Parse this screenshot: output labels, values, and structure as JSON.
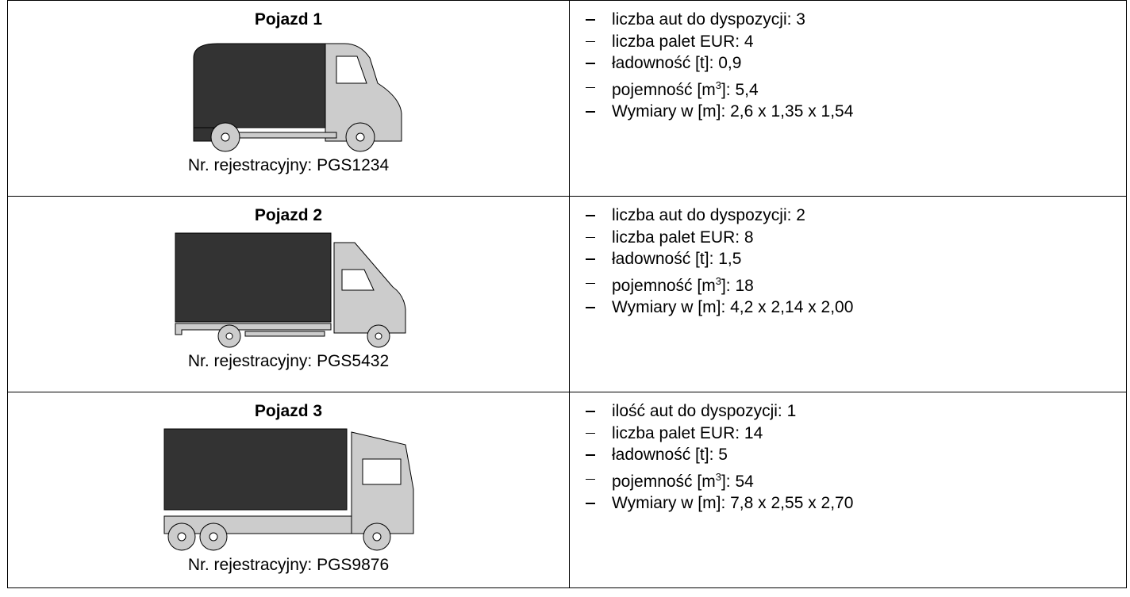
{
  "rows": [
    {
      "title": "Pojazd 1",
      "registration": "Nr. rejestracyjny: PGS1234",
      "specs": [
        "liczba aut do dyspozycji: 3",
        "liczba palet EUR: 4",
        "ładowność [t]: 0,9",
        {
          "before": "pojemność [m",
          "sup": "3",
          "after": "]: 5,4"
        },
        "Wymiary w [m]: 2,6 x 1,35 x 1,54"
      ]
    },
    {
      "title": "Pojazd 2",
      "registration": "Nr. rejestracyjny: PGS5432",
      "specs": [
        "liczba aut do dyspozycji: 2",
        "liczba palet EUR: 8",
        "ładowność [t]: 1,5",
        {
          "before": "pojemność [m",
          "sup": "3",
          "after": "]: 18"
        },
        "Wymiary w [m]: 4,2 x 2,14 x 2,00"
      ]
    },
    {
      "title": "Pojazd 3",
      "registration": "Nr. rejestracyjny: PGS9876",
      "specs": [
        "ilość aut do dyspozycji: 1",
        "liczba palet EUR: 14",
        "ładowność [t]: 5",
        {
          "before": "pojemność [m",
          "sup": "3",
          "after": "]: 54"
        },
        "Wymiary w [m]: 7,8 x 2,55 x 2,70"
      ]
    }
  ]
}
